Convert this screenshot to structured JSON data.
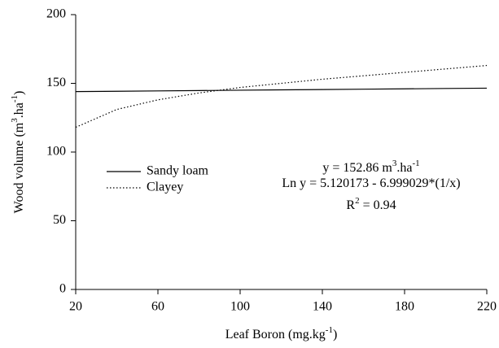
{
  "chart_data": {
    "type": "line",
    "x": [
      20,
      40,
      60,
      80,
      100,
      120,
      140,
      160,
      180,
      200,
      220
    ],
    "series": [
      {
        "name": "Sandy loam",
        "color": "#000000",
        "dash": "solid",
        "values": [
          144,
          144.25,
          144.5,
          144.75,
          145,
          145.25,
          145.5,
          145.75,
          146,
          146.25,
          146.5
        ]
      },
      {
        "name": "Clayey",
        "color": "#000000",
        "dash": "dotted",
        "values": [
          118,
          131,
          138,
          143,
          147,
          150,
          153,
          155.5,
          158,
          160.5,
          163
        ]
      }
    ],
    "xlim": [
      20,
      220
    ],
    "xticks": [
      20,
      60,
      100,
      140,
      180,
      220
    ],
    "ylim": [
      0,
      200
    ],
    "yticks": [
      0,
      50,
      100,
      150,
      200
    ],
    "xlabel": [
      {
        "text": "Leaf Boron (mg.kg"
      },
      {
        "text": "-1",
        "sup": true
      },
      {
        "text": ")"
      }
    ],
    "ylabel": [
      {
        "text": "Wood volume (m"
      },
      {
        "text": "3",
        "sup": true
      },
      {
        "text": ".ha"
      },
      {
        "text": "-1",
        "sup": true
      },
      {
        "text": ")"
      }
    ],
    "annotations": [
      [
        {
          "text": "y = 152.86 m"
        },
        {
          "text": "3",
          "sup": true
        },
        {
          "text": ".ha"
        },
        {
          "text": "-1",
          "sup": true
        }
      ],
      [
        {
          "text": "Ln y = 5.120173 - 6.999029*(1/x)"
        }
      ],
      [
        {
          "text": "R"
        },
        {
          "text": "2",
          "sup": true
        },
        {
          "text": " = 0.94"
        }
      ]
    ]
  }
}
